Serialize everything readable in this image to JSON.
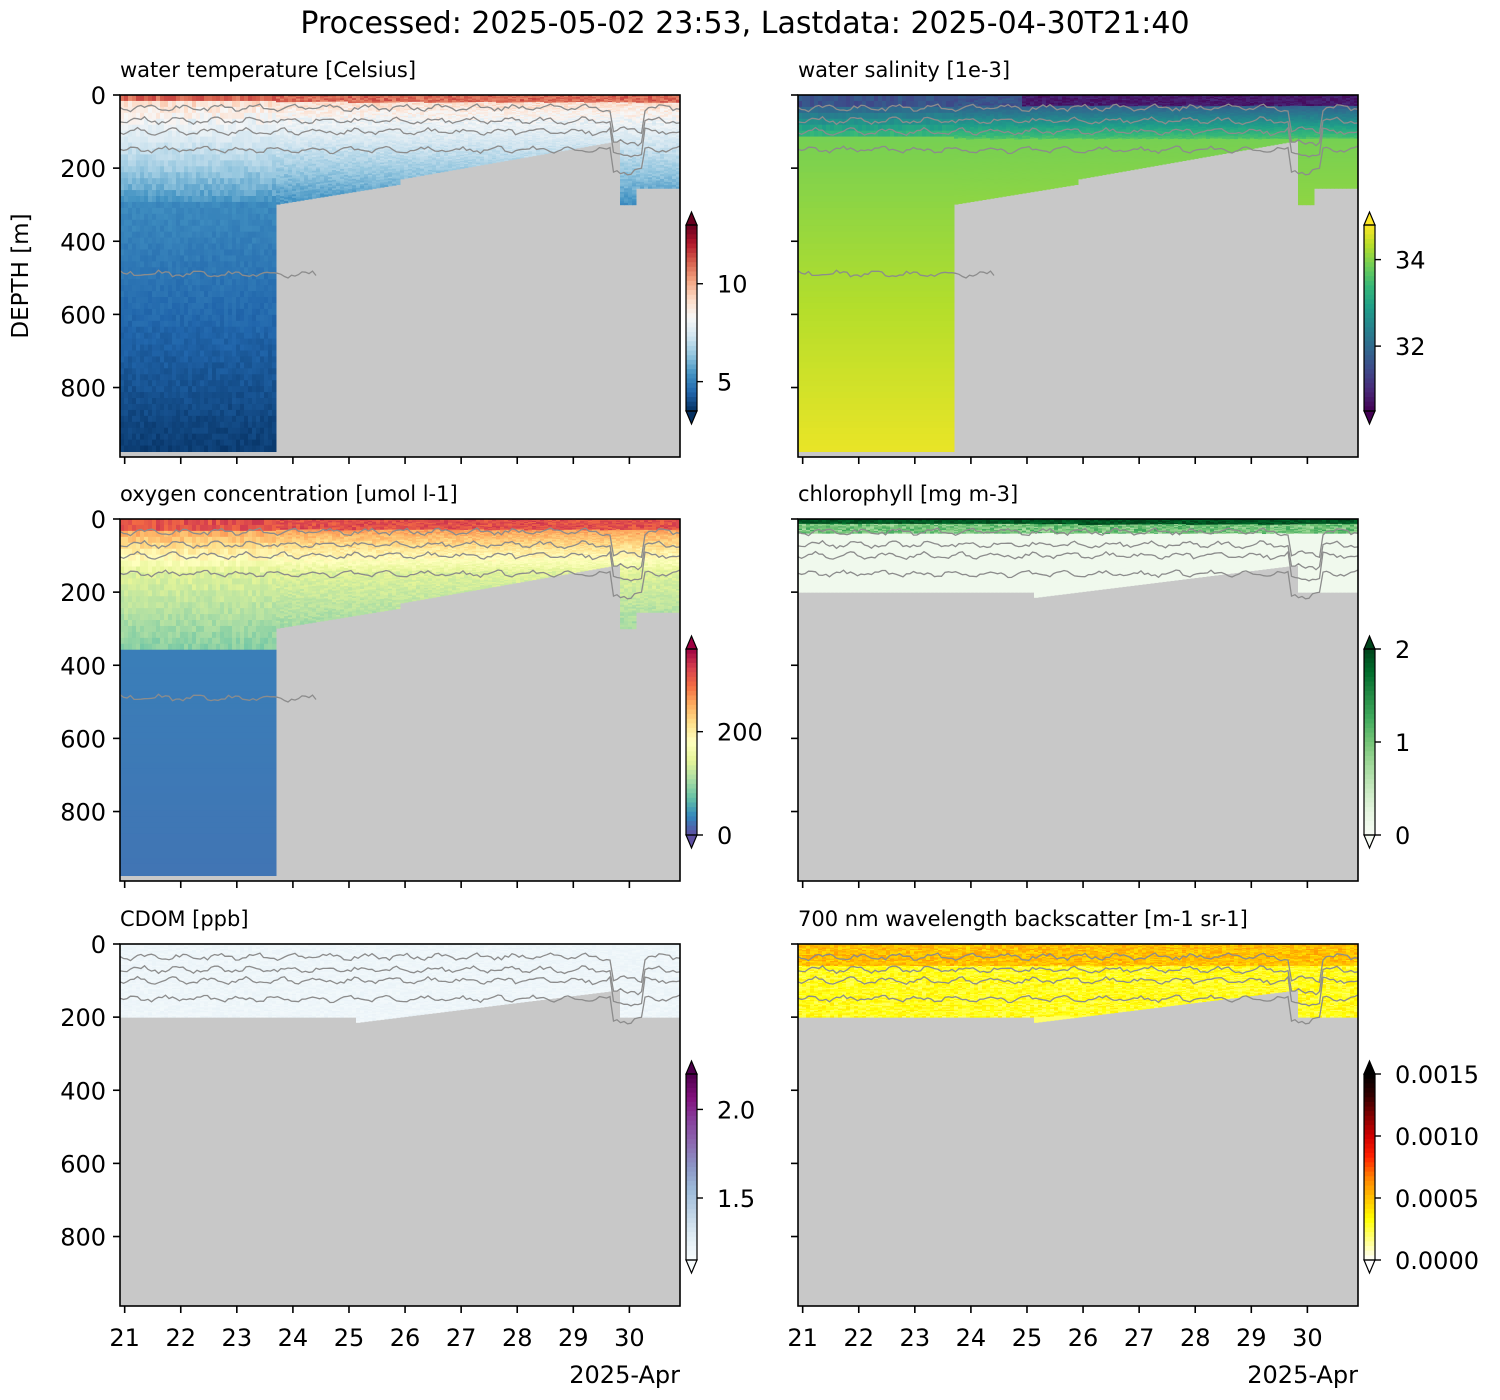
{
  "figure": {
    "suptitle": "Processed: 2025-05-02 23:53, Lastdata: 2025-04-30T21:40",
    "ylabel": "DEPTH [m]",
    "xtick_labels": [
      "21",
      "22",
      "23",
      "24",
      "25",
      "26",
      "27",
      "28",
      "29",
      "30"
    ],
    "xaxis_label": "2025-Apr",
    "ytick_labels": [
      "0",
      "200",
      "400",
      "600",
      "800"
    ],
    "colors": {
      "nodata": "#c8c8c8",
      "contour": "#8c8c8c",
      "axes": "#000000"
    }
  },
  "chart_data": [
    {
      "type": "heatmap",
      "title": "water temperature [Celsius]",
      "xlim": [
        "2025-04-20T22:00",
        "2025-04-30T21:40"
      ],
      "ylim": [
        990,
        0
      ],
      "yticks": [
        0,
        200,
        400,
        600,
        800
      ],
      "xticks": [
        "2025-04-21",
        "2025-04-22",
        "2025-04-23",
        "2025-04-24",
        "2025-04-25",
        "2025-04-26",
        "2025-04-27",
        "2025-04-28",
        "2025-04-29",
        "2025-04-30"
      ],
      "colormap": "RdBu_r",
      "clim": [
        3.5,
        13.0
      ],
      "colorbar_ticks": [
        5,
        10
      ],
      "colorbar_labels": [
        "5",
        "10"
      ],
      "colorbar_extend": "both"
    },
    {
      "type": "heatmap",
      "title": "water salinity [1e-3]",
      "xlim": [
        "2025-04-20T22:00",
        "2025-04-30T21:40"
      ],
      "ylim": [
        990,
        0
      ],
      "yticks": [
        0,
        200,
        400,
        600,
        800
      ],
      "xticks": [
        "2025-04-21",
        "2025-04-22",
        "2025-04-23",
        "2025-04-24",
        "2025-04-25",
        "2025-04-26",
        "2025-04-27",
        "2025-04-28",
        "2025-04-29",
        "2025-04-30"
      ],
      "colormap": "viridis",
      "clim": [
        30.5,
        34.8
      ],
      "colorbar_ticks": [
        32,
        34
      ],
      "colorbar_labels": [
        "32",
        "34"
      ],
      "colorbar_extend": "both"
    },
    {
      "type": "heatmap",
      "title": "oxygen concentration [umol l-1]",
      "xlim": [
        "2025-04-20T22:00",
        "2025-04-30T21:40"
      ],
      "ylim": [
        990,
        0
      ],
      "yticks": [
        0,
        200,
        400,
        600,
        800
      ],
      "xticks": [
        "2025-04-21",
        "2025-04-22",
        "2025-04-23",
        "2025-04-24",
        "2025-04-25",
        "2025-04-26",
        "2025-04-27",
        "2025-04-28",
        "2025-04-29",
        "2025-04-30"
      ],
      "colormap": "Spectral_r",
      "clim": [
        0,
        360
      ],
      "colorbar_ticks": [
        0,
        200
      ],
      "colorbar_labels": [
        "0",
        "200"
      ],
      "colorbar_extend": "both"
    },
    {
      "type": "heatmap",
      "title": "chlorophyll [mg m-3]",
      "xlim": [
        "2025-04-20T22:00",
        "2025-04-30T21:40"
      ],
      "ylim": [
        990,
        0
      ],
      "yticks": [
        0,
        200,
        400,
        600,
        800
      ],
      "xticks": [
        "2025-04-21",
        "2025-04-22",
        "2025-04-23",
        "2025-04-24",
        "2025-04-25",
        "2025-04-26",
        "2025-04-27",
        "2025-04-28",
        "2025-04-29",
        "2025-04-30"
      ],
      "colormap": "Greens",
      "clim": [
        0,
        2
      ],
      "colorbar_ticks": [
        0,
        1,
        2
      ],
      "colorbar_labels": [
        "0",
        "1",
        "2"
      ],
      "colorbar_extend": "both"
    },
    {
      "type": "heatmap",
      "title": "CDOM [ppb]",
      "xlim": [
        "2025-04-20T22:00",
        "2025-04-30T21:40"
      ],
      "ylim": [
        990,
        0
      ],
      "yticks": [
        0,
        200,
        400,
        600,
        800
      ],
      "xticks": [
        "2025-04-21",
        "2025-04-22",
        "2025-04-23",
        "2025-04-24",
        "2025-04-25",
        "2025-04-26",
        "2025-04-27",
        "2025-04-28",
        "2025-04-29",
        "2025-04-30"
      ],
      "colormap": "BuPu",
      "clim": [
        1.15,
        2.2
      ],
      "colorbar_ticks": [
        1.5,
        2.0
      ],
      "colorbar_labels": [
        "1.5",
        "2.0"
      ],
      "colorbar_extend": "both"
    },
    {
      "type": "heatmap",
      "title": "700 nm wavelength backscatter [m-1 sr-1]",
      "xlim": [
        "2025-04-20T22:00",
        "2025-04-30T21:40"
      ],
      "ylim": [
        990,
        0
      ],
      "yticks": [
        0,
        200,
        400,
        600,
        800
      ],
      "xticks": [
        "2025-04-21",
        "2025-04-22",
        "2025-04-23",
        "2025-04-24",
        "2025-04-25",
        "2025-04-26",
        "2025-04-27",
        "2025-04-28",
        "2025-04-29",
        "2025-04-30"
      ],
      "colormap": "hot_r",
      "clim": [
        0,
        0.0015
      ],
      "colorbar_ticks": [
        0,
        0.0005,
        0.001,
        0.0015
      ],
      "colorbar_labels": [
        "0.0000",
        "0.0005",
        "0.0010",
        "0.0015"
      ],
      "colorbar_extend": "both"
    }
  ]
}
